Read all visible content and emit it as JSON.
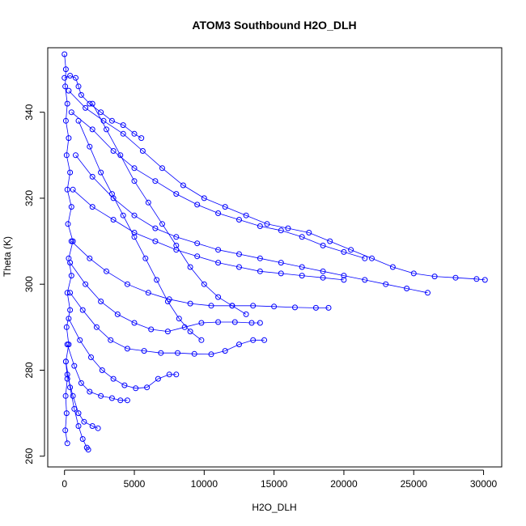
{
  "chart_data": {
    "type": "scatter",
    "title": "ATOM3 Southbound H2O_DLH",
    "xlabel": "H2O_DLH",
    "ylabel": "Theta (K)",
    "xlim": [
      -1200,
      31300
    ],
    "ylim": [
      257.5,
      355
    ],
    "xticks": [
      0,
      5000,
      10000,
      15000,
      20000,
      25000,
      30000
    ],
    "yticks": [
      260,
      280,
      300,
      320,
      340
    ],
    "marker": "open-circle",
    "connected": true,
    "grid": false,
    "color": "#0000ff",
    "series": [
      {
        "trace": "main-tongue-top",
        "values": [
          [
            300,
            345
          ],
          [
            1500,
            341
          ],
          [
            2800,
            338
          ],
          [
            4200,
            335
          ],
          [
            5600,
            331
          ],
          [
            7000,
            327
          ],
          [
            8500,
            323
          ],
          [
            10000,
            320
          ],
          [
            11500,
            318
          ],
          [
            13000,
            316
          ],
          [
            14500,
            314
          ],
          [
            16000,
            313
          ],
          [
            17500,
            312
          ],
          [
            19000,
            310
          ],
          [
            20500,
            308
          ],
          [
            22000,
            306
          ],
          [
            23500,
            304
          ],
          [
            25000,
            302.5
          ],
          [
            26500,
            301.8
          ],
          [
            28000,
            301.5
          ],
          [
            29500,
            301.2
          ],
          [
            30100,
            301
          ]
        ]
      },
      {
        "trace": "main-tongue-bottom",
        "values": [
          [
            26000,
            298
          ],
          [
            24500,
            299
          ],
          [
            23000,
            300
          ],
          [
            21500,
            301
          ],
          [
            20000,
            302
          ],
          [
            18500,
            303
          ],
          [
            17000,
            304
          ],
          [
            15500,
            305
          ],
          [
            14000,
            306
          ],
          [
            12500,
            307
          ],
          [
            11000,
            308
          ],
          [
            9500,
            309.5
          ],
          [
            8000,
            311
          ],
          [
            6500,
            313
          ],
          [
            5000,
            316
          ],
          [
            3500,
            320
          ],
          [
            2000,
            325
          ],
          [
            800,
            330
          ]
        ]
      },
      {
        "trace": "upper-band",
        "values": [
          [
            500,
            340
          ],
          [
            2000,
            336
          ],
          [
            3500,
            331
          ],
          [
            5000,
            327
          ],
          [
            6500,
            324
          ],
          [
            8000,
            321
          ],
          [
            9500,
            318.5
          ],
          [
            11000,
            316.5
          ],
          [
            12500,
            315
          ],
          [
            14000,
            313.5
          ],
          [
            15500,
            312.5
          ],
          [
            17000,
            311
          ],
          [
            18500,
            309
          ],
          [
            20000,
            307.5
          ],
          [
            21500,
            306
          ]
        ]
      },
      {
        "trace": "mid-band-1",
        "values": [
          [
            600,
            322
          ],
          [
            2000,
            318
          ],
          [
            3500,
            315
          ],
          [
            5000,
            312
          ],
          [
            6500,
            310
          ],
          [
            8000,
            308
          ],
          [
            9500,
            306.5
          ],
          [
            11000,
            305
          ],
          [
            12500,
            304
          ],
          [
            14000,
            303
          ],
          [
            15500,
            302.5
          ],
          [
            17000,
            302
          ],
          [
            18500,
            301.5
          ],
          [
            20000,
            301
          ]
        ]
      },
      {
        "trace": "mid-band-2",
        "values": [
          [
            500,
            310
          ],
          [
            1800,
            306
          ],
          [
            3000,
            303
          ],
          [
            4500,
            300
          ],
          [
            6000,
            298
          ],
          [
            7500,
            296.5
          ],
          [
            9000,
            295.5
          ],
          [
            10500,
            295
          ],
          [
            12000,
            295
          ],
          [
            13500,
            295
          ],
          [
            15000,
            294.8
          ],
          [
            16500,
            294.6
          ],
          [
            18000,
            294.5
          ],
          [
            18900,
            294.5
          ]
        ]
      },
      {
        "trace": "lower-band-1",
        "values": [
          [
            400,
            305
          ],
          [
            1500,
            300
          ],
          [
            2600,
            296
          ],
          [
            3800,
            293
          ],
          [
            5000,
            291
          ],
          [
            6200,
            289.5
          ],
          [
            7400,
            289
          ],
          [
            8600,
            290
          ],
          [
            9800,
            291
          ],
          [
            11000,
            291.2
          ],
          [
            12200,
            291.2
          ],
          [
            13400,
            291
          ],
          [
            14000,
            291
          ]
        ]
      },
      {
        "trace": "lower-band-2",
        "values": [
          [
            400,
            298
          ],
          [
            1300,
            294
          ],
          [
            2300,
            290
          ],
          [
            3300,
            287
          ],
          [
            4500,
            285
          ],
          [
            5700,
            284.5
          ],
          [
            6900,
            284
          ],
          [
            8100,
            284
          ],
          [
            9300,
            283.8
          ],
          [
            10500,
            283.7
          ],
          [
            11500,
            284.5
          ],
          [
            12500,
            286
          ],
          [
            13500,
            287
          ],
          [
            14300,
            287
          ]
        ]
      },
      {
        "trace": "lower-band-3",
        "values": [
          [
            300,
            292
          ],
          [
            1100,
            287
          ],
          [
            1900,
            283
          ],
          [
            2700,
            280
          ],
          [
            3500,
            278
          ],
          [
            4300,
            276.5
          ],
          [
            5100,
            275.8
          ],
          [
            5900,
            276
          ],
          [
            6700,
            278
          ],
          [
            7500,
            279
          ],
          [
            8000,
            279
          ]
        ]
      },
      {
        "trace": "lower-band-4",
        "values": [
          [
            200,
            286
          ],
          [
            700,
            281
          ],
          [
            1200,
            277
          ],
          [
            1800,
            275
          ],
          [
            2600,
            274
          ],
          [
            3400,
            273.5
          ],
          [
            4000,
            273
          ],
          [
            4500,
            273
          ]
        ]
      },
      {
        "trace": "bottom-drop-1",
        "values": [
          [
            100,
            282
          ],
          [
            400,
            276
          ],
          [
            700,
            271
          ],
          [
            1000,
            267
          ],
          [
            1300,
            264
          ],
          [
            1600,
            262
          ],
          [
            1700,
            261.5
          ]
        ]
      },
      {
        "trace": "bottom-drop-2",
        "values": [
          [
            200,
            279
          ],
          [
            600,
            274
          ],
          [
            1000,
            270
          ],
          [
            1400,
            268
          ],
          [
            2000,
            267
          ],
          [
            2400,
            266.5
          ]
        ]
      },
      {
        "trace": "near-zero-column",
        "values": [
          [
            0,
            353.5
          ],
          [
            100,
            350
          ],
          [
            50,
            346
          ],
          [
            200,
            342
          ],
          [
            100,
            338
          ],
          [
            300,
            334
          ],
          [
            150,
            330
          ],
          [
            400,
            326
          ],
          [
            200,
            322
          ],
          [
            500,
            318
          ],
          [
            250,
            314
          ],
          [
            600,
            310
          ],
          [
            300,
            306
          ],
          [
            500,
            302
          ],
          [
            200,
            298
          ],
          [
            400,
            294
          ],
          [
            150,
            290
          ],
          [
            300,
            286
          ],
          [
            100,
            282
          ],
          [
            200,
            278
          ],
          [
            80,
            274
          ],
          [
            150,
            270
          ],
          [
            60,
            266
          ],
          [
            200,
            263
          ]
        ]
      },
      {
        "trace": "upper-cap",
        "values": [
          [
            0,
            348
          ],
          [
            400,
            348.5
          ],
          [
            800,
            348
          ],
          [
            1000,
            346
          ],
          [
            1200,
            344
          ],
          [
            1800,
            342
          ],
          [
            2600,
            340
          ],
          [
            3400,
            338
          ],
          [
            4200,
            337
          ],
          [
            5000,
            335
          ],
          [
            5500,
            334
          ]
        ]
      },
      {
        "trace": "descending-spur",
        "values": [
          [
            1000,
            338
          ],
          [
            1800,
            332
          ],
          [
            2600,
            326
          ],
          [
            3400,
            321
          ],
          [
            4200,
            316
          ],
          [
            5000,
            311
          ],
          [
            5800,
            306
          ],
          [
            6600,
            301
          ],
          [
            7400,
            296
          ],
          [
            8200,
            292
          ],
          [
            9000,
            289
          ],
          [
            9800,
            287
          ]
        ]
      },
      {
        "trace": "descending-spur-2",
        "values": [
          [
            2000,
            342
          ],
          [
            3000,
            336
          ],
          [
            4000,
            330
          ],
          [
            5000,
            324
          ],
          [
            6000,
            319
          ],
          [
            7000,
            314
          ],
          [
            8000,
            309
          ],
          [
            9000,
            304
          ],
          [
            10000,
            300
          ],
          [
            11000,
            297
          ],
          [
            12000,
            295
          ],
          [
            13000,
            293
          ]
        ]
      }
    ]
  }
}
